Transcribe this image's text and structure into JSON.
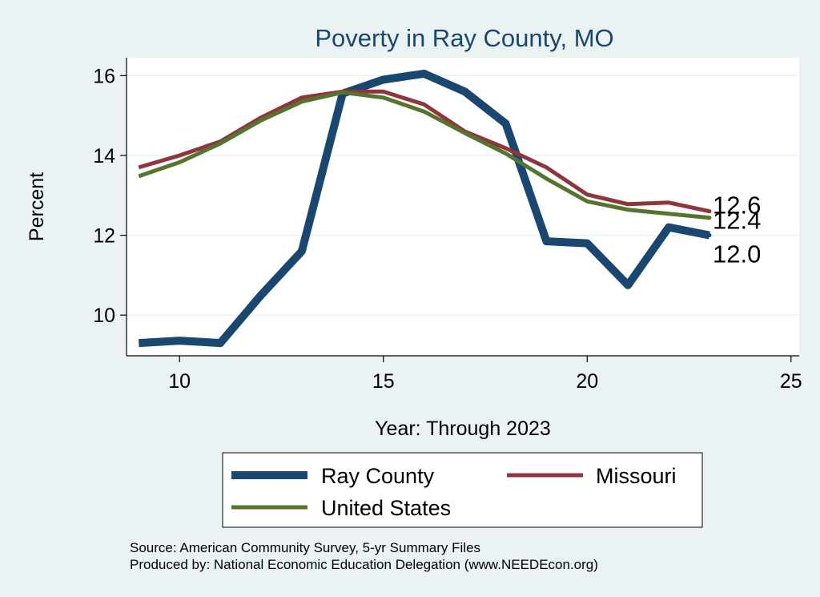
{
  "chart_data": {
    "type": "line",
    "title": "Poverty in Ray County, MO",
    "xlabel": "Year: Through 2023",
    "ylabel": "Percent",
    "xlim": [
      8.7,
      25.2
    ],
    "ylim": [
      8.98,
      16.45
    ],
    "x_ticks": [
      10,
      15,
      20,
      25
    ],
    "y_ticks": [
      10,
      12,
      14,
      16
    ],
    "grid": "horizontal",
    "x": [
      9,
      10,
      11,
      12,
      13,
      14,
      15,
      16,
      17,
      18,
      19,
      20,
      21,
      22,
      23
    ],
    "series": [
      {
        "name": "Ray County",
        "color": "#1a476f",
        "values": [
          9.3,
          9.36,
          9.3,
          10.5,
          11.6,
          15.55,
          15.9,
          16.05,
          15.6,
          14.8,
          11.85,
          11.8,
          10.75,
          12.2,
          12.0
        ],
        "end_label": "12.0"
      },
      {
        "name": "Missouri",
        "color": "#90353b",
        "values": [
          13.7,
          14.0,
          14.35,
          14.95,
          15.45,
          15.6,
          15.6,
          15.28,
          14.6,
          14.18,
          13.7,
          13.02,
          12.78,
          12.82,
          12.6
        ],
        "end_label": "12.6"
      },
      {
        "name": "United States",
        "color": "#55752f",
        "values": [
          13.48,
          13.83,
          14.3,
          14.88,
          15.35,
          15.58,
          15.45,
          15.1,
          14.56,
          14.05,
          13.42,
          12.85,
          12.64,
          12.54,
          12.44
        ],
        "end_label": "12.4"
      }
    ],
    "legend_position": "bottom",
    "source": "Source: American Community Survey, 5-yr Summary Files",
    "produced_by": "Produced by: National Economic Education Delegation (www.NEEDEcon.org)"
  }
}
